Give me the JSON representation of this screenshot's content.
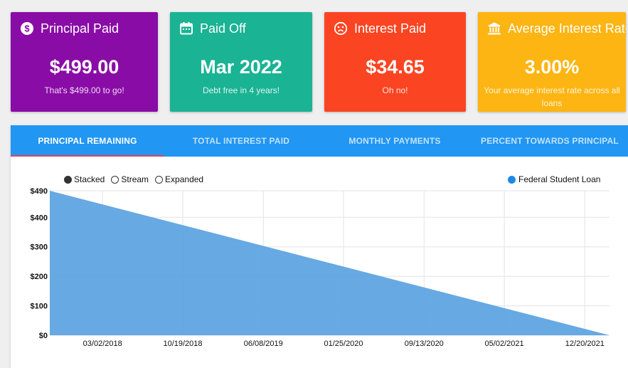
{
  "cards": [
    {
      "title": "Principal Paid",
      "value": "$499.00",
      "subtitle": "That's $499.00 to go!",
      "color": "#8a0ca6",
      "icon": "dollar-circle-icon"
    },
    {
      "title": "Paid Off",
      "value": "Mar 2022",
      "subtitle": "Debt free in 4 years!",
      "color": "#1ab394",
      "icon": "calendar-icon"
    },
    {
      "title": "Interest Paid",
      "value": "$34.65",
      "subtitle": "Oh no!",
      "color": "#fb4422",
      "icon": "sad-face-icon"
    },
    {
      "title": "Average Interest Rate",
      "value": "3.00%",
      "subtitle": "Your average interest rate across all loans",
      "color": "#fdb513",
      "icon": "bank-icon"
    }
  ],
  "tabs": [
    {
      "label": "PRINCIPAL REMAINING",
      "active": true
    },
    {
      "label": "TOTAL INTEREST PAID",
      "active": false
    },
    {
      "label": "MONTHLY PAYMENTS",
      "active": false
    },
    {
      "label": "PERCENT TOWARDS PRINCIPAL",
      "active": false
    }
  ],
  "chart_controls": {
    "options": [
      {
        "label": "Stacked",
        "selected": true
      },
      {
        "label": "Stream",
        "selected": false
      },
      {
        "label": "Expanded",
        "selected": false
      }
    ]
  },
  "chart_data": {
    "type": "area",
    "title": "",
    "xlabel": "",
    "ylabel": "",
    "legend_position": "top-right",
    "grid": true,
    "x_ticks": [
      "03/02/2018",
      "10/19/2018",
      "06/08/2019",
      "01/25/2020",
      "09/13/2020",
      "05/02/2021",
      "12/20/2021"
    ],
    "y_ticks": [
      "$0",
      "$100",
      "$200",
      "$300",
      "$400",
      "$490"
    ],
    "y_tick_values": [
      0,
      100,
      200,
      300,
      400,
      490
    ],
    "ylim": [
      0,
      490
    ],
    "xlim": [
      "2017-10-01",
      "2022-03-01"
    ],
    "series": [
      {
        "name": "Federal Student Loan",
        "color": "#5fa4e0",
        "x": [
          "2017-10-01",
          "2022-03-01"
        ],
        "values": [
          490,
          0
        ]
      }
    ]
  }
}
